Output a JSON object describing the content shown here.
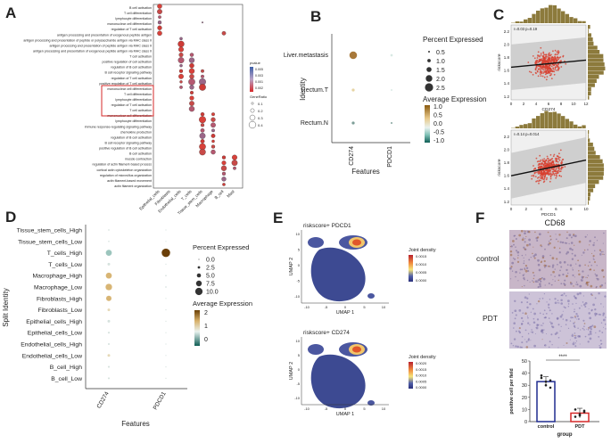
{
  "panels": {
    "A": {
      "letter": "A"
    },
    "B": {
      "letter": "B"
    },
    "C": {
      "letter": "C"
    },
    "D": {
      "letter": "D"
    },
    "E": {
      "letter": "E"
    },
    "F": {
      "letter": "F"
    }
  },
  "chart_data": [
    {
      "panel": "A",
      "type": "scatter",
      "title": "",
      "rows": [
        "B cell activation",
        "T cell differentiation",
        "lymphocyte differentiation",
        "mononuclear cell differentiation",
        "regulation of T cell activation",
        "antigen processing and presentation of exogenous peptide antigen",
        "antigen processing and presentation of peptide or polysaccharide antigen via MHC class II",
        "antigen processing and presentation of peptide antigen via MHC class II",
        "antigen processing and presentation of exogenous peptide antigen via MHC class II",
        "T cell activation",
        "positive regulation of cell activation",
        "regulation of B cell activation",
        "B cell receptor signaling pathway",
        "regulation of T cell activation",
        "positive regulation of T cell activation",
        "mononuclear cell differentiation",
        "T cell differentiation",
        "lymphocyte differentiation",
        "regulation of T cell activation",
        "T cell activation",
        "mononuclear cell differentiation",
        "lymphocyte differentiation",
        "immune response-regulating signaling pathway",
        "chemokine production",
        "regulation of B cell activation",
        "B cell receptor signaling pathway",
        "positive regulation of B cell activation",
        "B cell activation",
        "muscle contraction",
        "regulation of actin filament-based process",
        "cortical actin cytoskeleton organization",
        "regulation of microvillus organization",
        "actin filament-based movement",
        "actin filament organization"
      ],
      "columns": [
        "Epithelial_cells",
        "Fibroblasts",
        "Endothelial_cells",
        "T_cells",
        "Tissue_stem_cells",
        "Macrophage",
        "B_cell",
        "Mast"
      ],
      "legend": {
        "color_title": "pvalue",
        "color_ticks": [
          "0.005",
          "0.003",
          "0.001",
          "0.002"
        ],
        "size_title": "GeneRatio",
        "size_ticks": [
          "0.1",
          "0.2",
          "0.3",
          "0.4"
        ]
      }
    },
    {
      "panel": "B",
      "type": "scatter",
      "title": "",
      "xlabel": "Features",
      "ylabel": "Identity",
      "features": [
        "CD274",
        "PDCD1"
      ],
      "identities": [
        "Liver.metastasis",
        "Rectum.T",
        "Rectum.N"
      ],
      "percent_expressed": [
        [
          2.0,
          0.2
        ],
        [
          0.3,
          0.1
        ],
        [
          0.3,
          0.1
        ]
      ],
      "average_expression": [
        [
          1.0,
          -0.2
        ],
        [
          0.2,
          -0.3
        ],
        [
          -0.4,
          -0.4
        ]
      ],
      "legend": {
        "size_title": "Percent Expressed",
        "size_ticks": [
          "0.5",
          "1.0",
          "1.5",
          "2.0",
          "2.5"
        ],
        "color_title": "Average Expression",
        "color_ticks": [
          "1.0",
          "0.5",
          "0.0",
          "-0.5",
          "-1.0"
        ]
      }
    },
    {
      "panel": "C-top",
      "type": "scatter",
      "annotation": "r=0.03 p=0.19",
      "xlabel": "CD274",
      "ylabel": "riskscore",
      "xticks": [
        "0",
        "2",
        "4",
        "6",
        "8",
        "10",
        "12"
      ],
      "yticks": [
        "1.2",
        "1.4",
        "1.6",
        "1.8",
        "2.0",
        "2.2"
      ],
      "xlim": [
        0,
        12
      ],
      "ylim": [
        1.15,
        2.3
      ],
      "trend": {
        "x0": 0,
        "y0": 1.65,
        "x1": 12,
        "y1": 1.76
      }
    },
    {
      "panel": "C-bottom",
      "type": "scatter",
      "annotation": "r=0.14 p=0.014",
      "xlabel": "PDCD1",
      "ylabel": "riskscore",
      "xticks": [
        "0",
        "2",
        "4",
        "6",
        "8",
        "10"
      ],
      "yticks": [
        "1.2",
        "1.4",
        "1.6",
        "1.8",
        "2.0",
        "2.2"
      ],
      "xlim": [
        0,
        10
      ],
      "ylim": [
        1.15,
        2.3
      ],
      "trend": {
        "x0": 0,
        "y0": 1.6,
        "x1": 10,
        "y1": 1.84
      }
    },
    {
      "panel": "D",
      "type": "scatter",
      "xlabel": "Features",
      "ylabel": "Split Identity",
      "features": [
        "CD274",
        "PDCD1"
      ],
      "identities": [
        "Tissue_stem_cells_High",
        "Tissue_stem_cells_Low",
        "T_cells_High",
        "T_cells_Low",
        "Macrophage_High",
        "Macrophage_Low",
        "Fibroblasts_High",
        "Fibroblasts_Low",
        "Epithelial_cells_High",
        "Epithelial_cells_Low",
        "Endothelial_cells_High",
        "Endothelial_cells_Low",
        "B_cell_High",
        "B_cell_Low"
      ],
      "percent_expressed": [
        [
          0.3,
          0
        ],
        [
          0.3,
          0
        ],
        [
          5,
          10
        ],
        [
          1,
          0
        ],
        [
          5,
          0.3
        ],
        [
          6,
          0.3
        ],
        [
          4,
          0
        ],
        [
          1,
          0
        ],
        [
          1,
          0
        ],
        [
          0.5,
          0
        ],
        [
          0.5,
          0
        ],
        [
          1,
          0
        ],
        [
          0.5,
          0
        ],
        [
          0.5,
          0
        ]
      ],
      "average_expression": [
        [
          0,
          0
        ],
        [
          0,
          0
        ],
        [
          -0.5,
          2.5
        ],
        [
          0,
          0
        ],
        [
          1,
          0
        ],
        [
          1.2,
          0
        ],
        [
          1.1,
          0
        ],
        [
          0.5,
          0
        ],
        [
          0.2,
          0
        ],
        [
          0,
          0
        ],
        [
          0,
          0
        ],
        [
          0.5,
          0
        ],
        [
          0,
          0
        ],
        [
          0,
          0
        ]
      ],
      "legend": {
        "size_title": "Percent Expressed",
        "size_ticks": [
          "0.0",
          "2.5",
          "5.0",
          "7.5",
          "10.0"
        ],
        "color_title": "Average Expression",
        "color_ticks": [
          "2",
          "1",
          "0"
        ]
      }
    },
    {
      "panel": "E-top",
      "type": "scatter",
      "title": "riskscore+ PDCD1",
      "xlabel": "UMAP 1",
      "ylabel": "UMAP 2",
      "xticks": [
        "-10",
        "-5",
        "0",
        "5",
        "10"
      ],
      "yticks": [
        "10",
        "5",
        "0",
        "-5",
        "-10"
      ],
      "legend": {
        "title": "Joint density",
        "ticks": [
          "0.0015",
          "0.0010",
          "0.0005",
          "0.0000"
        ]
      }
    },
    {
      "panel": "E-bottom",
      "type": "scatter",
      "title": "riskscore+ CD274",
      "xlabel": "UMAP 1",
      "ylabel": "UMAP 2",
      "xticks": [
        "-10",
        "-5",
        "0",
        "5",
        "10"
      ],
      "yticks": [
        "10",
        "5",
        "0",
        "-5",
        "-10"
      ],
      "legend": {
        "title": "Joint density",
        "ticks": [
          "0.0020",
          "0.0015",
          "0.0010",
          "0.0005",
          "0.0000"
        ]
      }
    },
    {
      "panel": "F",
      "type": "bar",
      "title": "CD68",
      "categories": [
        "control",
        "PDT"
      ],
      "values": [
        33,
        7
      ],
      "points": [
        [
          36,
          30,
          28,
          38,
          33,
          34
        ],
        [
          4,
          6,
          8,
          10,
          5,
          9
        ]
      ],
      "xlabel": "group",
      "ylabel": "positive cell per field",
      "ylim": [
        0,
        50
      ],
      "yticks": [
        "0",
        "10",
        "20",
        "30",
        "40",
        "50"
      ],
      "significance": "****",
      "colors": [
        "#1f2b8f",
        "#d62828"
      ]
    }
  ],
  "micrograph": {
    "title": "CD68",
    "rows": [
      "control",
      "PDT"
    ]
  }
}
